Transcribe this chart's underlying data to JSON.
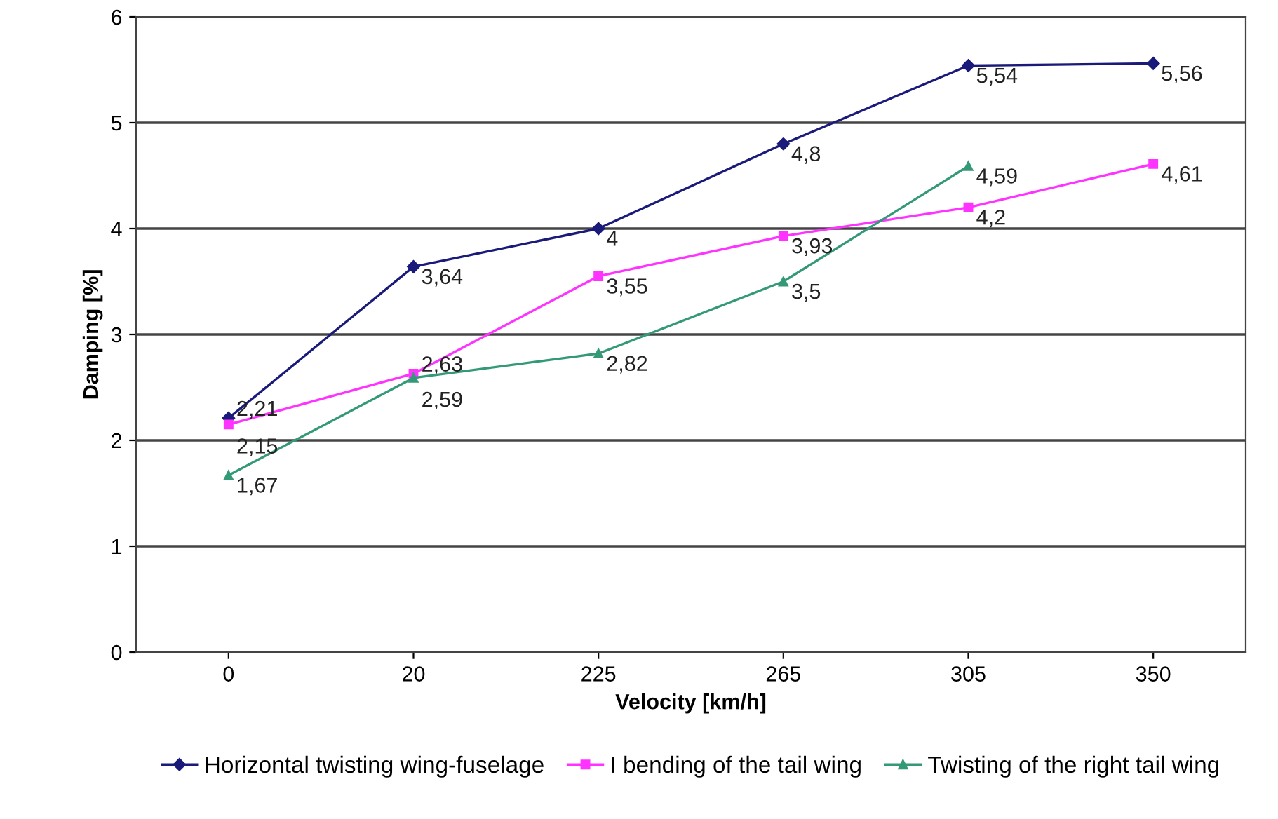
{
  "chart_data": {
    "type": "line",
    "xlabel": "Velocity [km/h]",
    "ylabel": "Damping [%]",
    "categories": [
      "0",
      "20",
      "225",
      "265",
      "305",
      "350"
    ],
    "series": [
      {
        "name": "Horizontal twisting wing-fuselage",
        "color": "#1a1a7a",
        "marker": "diamond",
        "values": [
          2.21,
          3.64,
          4,
          4.8,
          5.54,
          5.56
        ],
        "value_labels": [
          "2,21",
          "3,64",
          "4",
          "4,8",
          "5,54",
          "5,56"
        ]
      },
      {
        "name": "I bending of the tail wing",
        "color": "#ff33ff",
        "marker": "square",
        "values": [
          2.15,
          2.63,
          3.55,
          3.93,
          4.2,
          4.61
        ],
        "value_labels": [
          "2,15",
          "2,63",
          "3,55",
          "3,93",
          "4,2",
          "4,61"
        ]
      },
      {
        "name": "Twisting of the right tail wing",
        "color": "#339977",
        "marker": "triangle",
        "values": [
          1.67,
          2.59,
          2.82,
          3.5,
          4.59,
          null
        ],
        "value_labels": [
          "1,67",
          "2,59",
          "2,82",
          "3,5",
          "4,59",
          null
        ]
      }
    ],
    "ylim": [
      0,
      6
    ],
    "yticks": [
      0,
      1,
      2,
      3,
      4,
      5,
      6
    ],
    "grid": "y",
    "legend": "bottom"
  }
}
